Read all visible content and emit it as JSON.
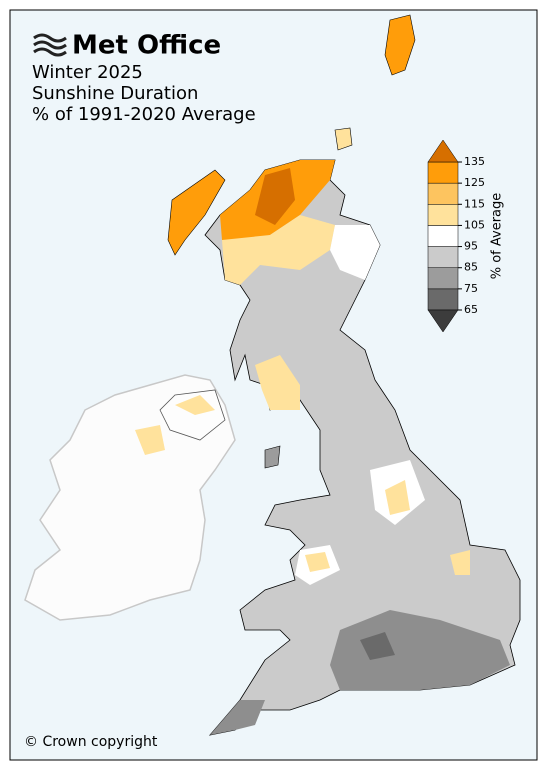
{
  "header": {
    "logo": "Met Office",
    "title": [
      "Winter 2025",
      "Sunshine Duration",
      "% of 1991-2020 Average"
    ]
  },
  "legend": {
    "label": "% of Average",
    "ticks": [
      65,
      75,
      85,
      95,
      105,
      115,
      125,
      135
    ],
    "colors": [
      "#3c3c3c",
      "#6a6a6a",
      "#9c9c9c",
      "#cbcbcb",
      "#ffffff",
      "#ffe29c",
      "#fdc45f",
      "#ff9d0a",
      "#d66f00"
    ]
  },
  "footer": {
    "copyright": "© Crown copyright"
  }
}
